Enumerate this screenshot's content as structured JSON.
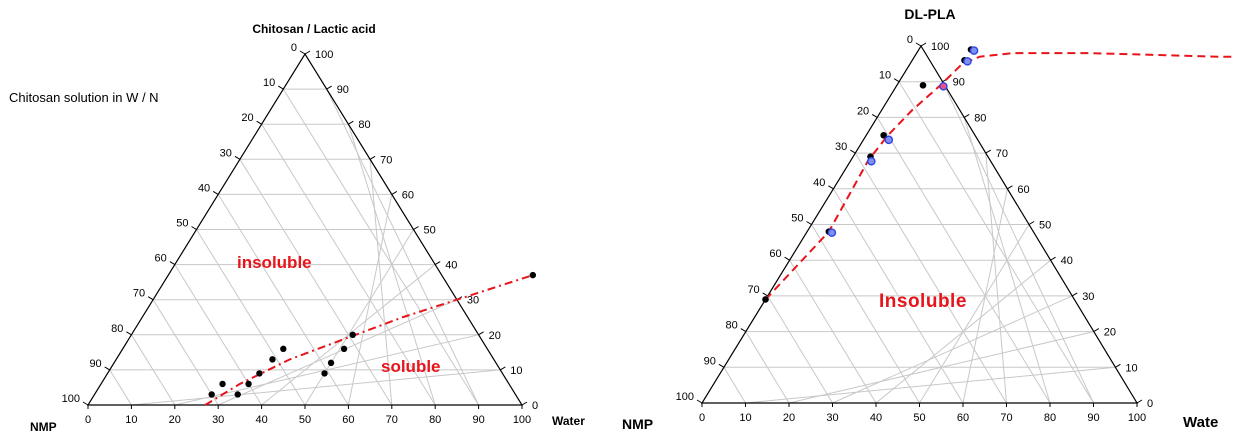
{
  "chart_data": [
    {
      "type": "scatter",
      "subtype": "ternary",
      "vertex_labels": {
        "top": "Chitosan / Lactic acid",
        "left": "NMP",
        "right": "Water"
      },
      "note": "Chitosan solution  in W / N",
      "ticks": [
        0,
        10,
        20,
        30,
        40,
        50,
        60,
        70,
        80,
        90,
        100
      ],
      "grid": true,
      "region_labels": {
        "upper": "insoluble",
        "lower": "soluble"
      },
      "points": [
        {
          "water": 84,
          "chitosan": 37
        },
        {
          "water": 51,
          "chitosan": 20
        },
        {
          "water": 51,
          "chitosan": 16
        },
        {
          "water": 50,
          "chitosan": 12
        },
        {
          "water": 50,
          "chitosan": 9
        },
        {
          "water": 37,
          "chitosan": 16
        },
        {
          "water": 36,
          "chitosan": 13
        },
        {
          "water": 35,
          "chitosan": 9
        },
        {
          "water": 34,
          "chitosan": 6
        },
        {
          "water": 33,
          "chitosan": 3
        },
        {
          "water": 28,
          "chitosan": 6
        },
        {
          "water": 27,
          "chitosan": 3
        }
      ],
      "boundary_curve": [
        {
          "water": 27,
          "chitosan": 0
        },
        {
          "water": 32,
          "chitosan": 6
        },
        {
          "water": 40,
          "chitosan": 13
        },
        {
          "water": 50,
          "chitosan": 19
        },
        {
          "water": 60,
          "chitosan": 25
        },
        {
          "water": 70,
          "chitosan": 30
        },
        {
          "water": 84,
          "chitosan": 37
        }
      ],
      "colors": {
        "curve": "#e8141b",
        "point": "#000000",
        "grid": "#c8c8c8"
      }
    },
    {
      "type": "scatter",
      "subtype": "ternary",
      "vertex_labels": {
        "top": "DL-PLA",
        "left": "NMP",
        "right": "Wate"
      },
      "ticks": [
        0,
        10,
        20,
        30,
        40,
        50,
        60,
        70,
        80,
        90,
        100
      ],
      "grid": true,
      "region_labels": {
        "upper": "Insoluble"
      },
      "points_black": [
        {
          "water": 0,
          "pla": 29
        },
        {
          "water": 5,
          "pla": 48
        },
        {
          "water": 4,
          "pla": 69
        },
        {
          "water": 4,
          "pla": 75
        },
        {
          "water": 6,
          "pla": 89
        },
        {
          "water": 12,
          "pla": 96
        },
        {
          "water": 12,
          "pla": 99
        }
      ],
      "points_blue": [
        {
          "water": 5,
          "pla": 48
        },
        {
          "water": 4,
          "pla": 68
        },
        {
          "water": 5,
          "pla": 74
        },
        {
          "water": 10,
          "pla": 89
        },
        {
          "water": 12,
          "pla": 96
        },
        {
          "water": 12,
          "pla": 99
        }
      ],
      "boundary_curve": [
        {
          "water": 0,
          "pla": 29
        },
        {
          "water": 5,
          "pla": 48
        },
        {
          "water": 4,
          "pla": 68
        },
        {
          "water": 5,
          "pla": 75
        },
        {
          "water": 7,
          "pla": 82
        },
        {
          "water": 10,
          "pla": 89
        },
        {
          "water": 12,
          "pla": 95
        },
        {
          "water": 15,
          "pla": 97
        },
        {
          "water": 22,
          "pla": 98
        },
        {
          "water": 40,
          "pla": 98
        },
        {
          "water": 70,
          "pla": 97
        },
        {
          "water": 100,
          "pla": 97
        }
      ],
      "colors": {
        "curve": "#e8141b",
        "point": "#000000",
        "marker_blue": "#2f46e6",
        "marker_pink": "#e8508a",
        "grid": "#c8c8c8"
      }
    }
  ]
}
